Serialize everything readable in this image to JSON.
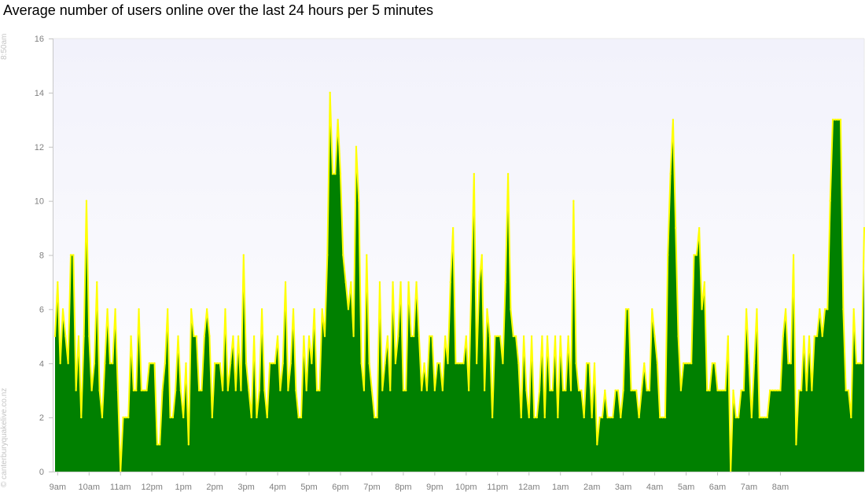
{
  "title": "Average number of users online over the last 24 hours per 5 minutes",
  "time_stamp": "8:50am",
  "copyright": "© canterburyquakelive.co.nz",
  "colors": {
    "fill": "#008000",
    "line": "#ffff00",
    "plot_background_top": "#f2f2fb",
    "plot_background_bottom": "#ffffff",
    "axis_text": "#808080"
  },
  "chart_data": {
    "type": "area",
    "title": "Average number of users online over the last 24 hours per 5 minutes",
    "xlabel": "",
    "ylabel": "",
    "ylim": [
      0,
      16
    ],
    "y_ticks": [
      0,
      2,
      4,
      6,
      8,
      10,
      12,
      14,
      16
    ],
    "x_tick_labels": [
      "9am",
      "10am",
      "11am",
      "12pm",
      "1pm",
      "2pm",
      "3pm",
      "4pm",
      "5pm",
      "6pm",
      "7pm",
      "8pm",
      "9pm",
      "10pm",
      "11pm",
      "12am",
      "1am",
      "2am",
      "3am",
      "4am",
      "5am",
      "6am",
      "7am",
      "8am"
    ],
    "grid": false,
    "legend": "none",
    "x_start": "8:55am",
    "x_interval_minutes": 5,
    "values": [
      5,
      7,
      4,
      6,
      5,
      4,
      8,
      8,
      3,
      5,
      2,
      5,
      10,
      5,
      3,
      4,
      7,
      3,
      2,
      4,
      6,
      4,
      4,
      6,
      3,
      0,
      2,
      2,
      2,
      5,
      3,
      3,
      6,
      3,
      3,
      3,
      4,
      4,
      4,
      1,
      1,
      3,
      4,
      6,
      2,
      2,
      3,
      5,
      3,
      2,
      4,
      1,
      6,
      5,
      5,
      3,
      3,
      5,
      6,
      5,
      2,
      4,
      4,
      4,
      3,
      6,
      3,
      4,
      5,
      3,
      5,
      3,
      8,
      4,
      3,
      2,
      5,
      2,
      3,
      6,
      3,
      2,
      4,
      4,
      4,
      5,
      3,
      4,
      7,
      3,
      4,
      6,
      3,
      2,
      2,
      5,
      3,
      5,
      4,
      6,
      3,
      3,
      6,
      5,
      8,
      14,
      11,
      11,
      13,
      11,
      8,
      7,
      6,
      7,
      5,
      12,
      10,
      4,
      3,
      8,
      4,
      3,
      2,
      2,
      7,
      3,
      4,
      5,
      3,
      7,
      4,
      5,
      7,
      3,
      3,
      7,
      5,
      5,
      7,
      5,
      3,
      4,
      3,
      5,
      5,
      3,
      4,
      4,
      3,
      5,
      4,
      7,
      9,
      4,
      4,
      4,
      4,
      5,
      3,
      7,
      11,
      4,
      7,
      8,
      3,
      6,
      5,
      2,
      5,
      5,
      5,
      4,
      7,
      11,
      6,
      5,
      5,
      4,
      2,
      5,
      3,
      2,
      5,
      2,
      2,
      3,
      5,
      2,
      5,
      3,
      3,
      5,
      2,
      5,
      3,
      3,
      5,
      3,
      10,
      4,
      3,
      3,
      2,
      4,
      4,
      2,
      4,
      1,
      2,
      2,
      3,
      2,
      2,
      2,
      3,
      3,
      2,
      3,
      6,
      6,
      3,
      3,
      3,
      2,
      3,
      4,
      3,
      3,
      6,
      5,
      4,
      2,
      2,
      2,
      8,
      11,
      13,
      9,
      5,
      3,
      4,
      4,
      4,
      4,
      8,
      8,
      9,
      6,
      7,
      3,
      3,
      4,
      4,
      3,
      3,
      3,
      3,
      5,
      0,
      3,
      2,
      2,
      3,
      3,
      6,
      4,
      2,
      4,
      6,
      2,
      2,
      2,
      2,
      3,
      3,
      3,
      3,
      3,
      5,
      6,
      4,
      4,
      8,
      1,
      3,
      3,
      5,
      3,
      5,
      3,
      5,
      5,
      6,
      5,
      6,
      6,
      10,
      13,
      13,
      13,
      13,
      6,
      3,
      3,
      2,
      6,
      4,
      4,
      4,
      9
    ]
  }
}
